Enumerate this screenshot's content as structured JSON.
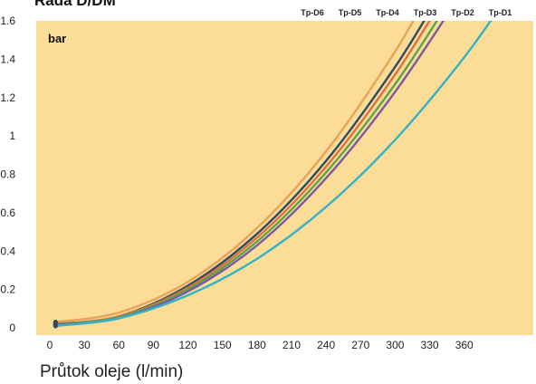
{
  "chart_data": {
    "type": "line",
    "title": "Řada D/DM",
    "unit_label": "bar",
    "xlabel": "Průtok oleje (l/min)",
    "ylabel": "bar",
    "xlim": [
      0,
      420
    ],
    "ylim": [
      0,
      1.6
    ],
    "x_ticks": [
      0,
      30,
      60,
      90,
      120,
      150,
      180,
      210,
      240,
      270,
      300,
      330,
      360
    ],
    "y_ticks": [
      0,
      0.2,
      0.4,
      0.6,
      0.8,
      1,
      1.2,
      1.4,
      1.6
    ],
    "y_tick_labels": [
      "0",
      "0.2",
      "0.4",
      "0.6",
      "0.8",
      "1",
      "1.2",
      "1.4",
      "1.6"
    ],
    "grid": false,
    "background_color": "#fbdd98",
    "legend_position": "top",
    "series": [
      {
        "name": "Tp-D6",
        "color": "#e8a25a",
        "x": [
          5,
          60,
          120,
          180,
          240,
          300,
          330
        ],
        "y": [
          0.03,
          0.08,
          0.24,
          0.52,
          0.92,
          1.44,
          1.76
        ]
      },
      {
        "name": "Tp-D5",
        "color": "#2f4a63",
        "x": [
          5,
          60,
          120,
          180,
          240,
          300,
          340
        ],
        "y": [
          0.02,
          0.06,
          0.22,
          0.49,
          0.87,
          1.36,
          1.75
        ]
      },
      {
        "name": "Tp-D4",
        "color": "#e0703e",
        "x": [
          5,
          60,
          120,
          180,
          240,
          300,
          345
        ],
        "y": [
          0.02,
          0.06,
          0.21,
          0.47,
          0.84,
          1.32,
          1.75
        ]
      },
      {
        "name": "Tp-D3",
        "color": "#5aa547",
        "x": [
          5,
          60,
          120,
          180,
          240,
          300,
          350
        ],
        "y": [
          0.02,
          0.055,
          0.2,
          0.45,
          0.81,
          1.27,
          1.73
        ]
      },
      {
        "name": "Tp-D2",
        "color": "#7d58a5",
        "x": [
          5,
          60,
          120,
          180,
          240,
          300,
          355
        ],
        "y": [
          0.015,
          0.05,
          0.19,
          0.43,
          0.78,
          1.23,
          1.72
        ]
      },
      {
        "name": "Tp-D1",
        "color": "#33b2c8",
        "x": [
          5,
          60,
          120,
          180,
          240,
          300,
          360,
          400
        ],
        "y": [
          0.01,
          0.05,
          0.17,
          0.36,
          0.63,
          0.98,
          1.41,
          1.75
        ]
      }
    ]
  }
}
